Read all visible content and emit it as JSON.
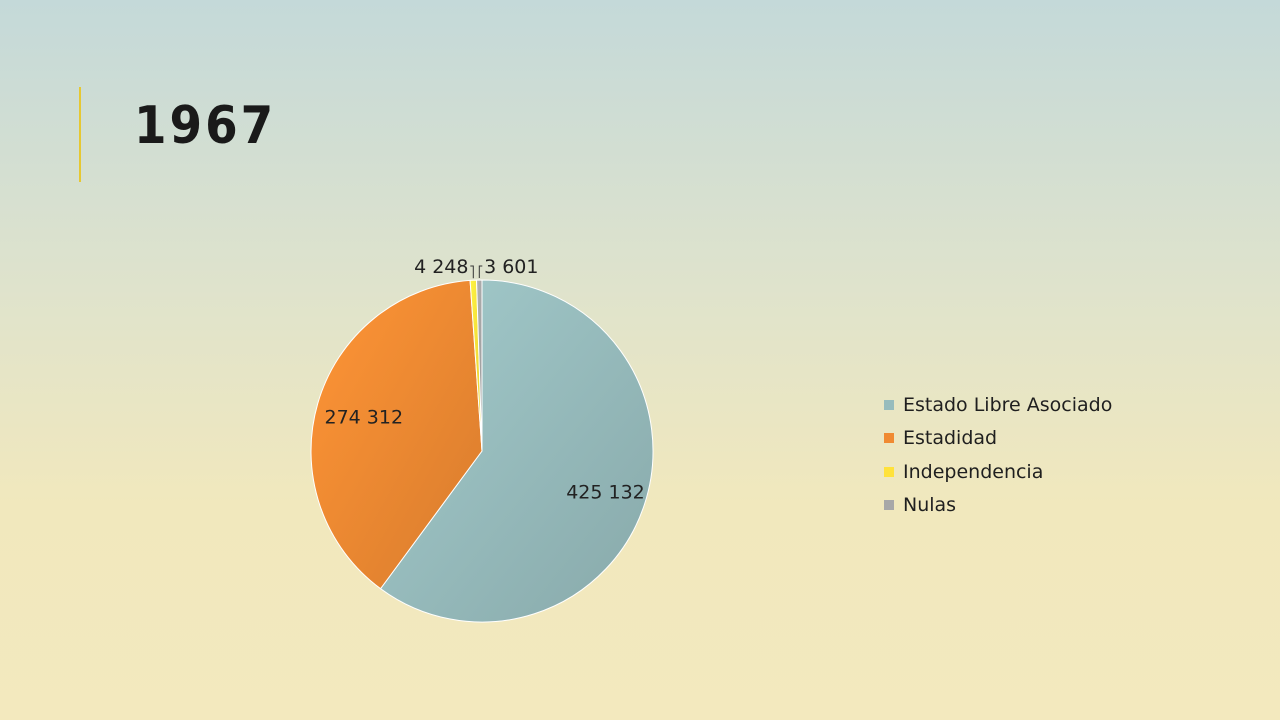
{
  "slide": {
    "title": "1967"
  },
  "chart_data": {
    "type": "pie",
    "title": "",
    "labels": [
      "Estado Libre Asociado",
      "Estadidad",
      "Independencia",
      "Nulas"
    ],
    "values": [
      425132,
      274312,
      4248,
      3601
    ],
    "value_labels": [
      "425 132",
      "274 312",
      "4 248",
      "3 601"
    ],
    "colors": [
      "#97bcbd",
      "#f08a32",
      "#ffe23b",
      "#a8a8a8"
    ],
    "legend_position": "right",
    "start_angle": "12 o'clock, clockwise"
  }
}
